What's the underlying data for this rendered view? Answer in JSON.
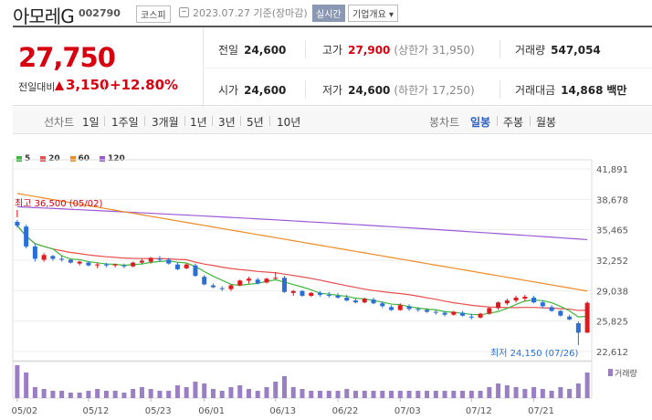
{
  "header": {
    "name": "아모레G",
    "code": "002790",
    "market": "코스피",
    "date": "2023.07.27 기준(장마감)",
    "realtime": "실시간",
    "company_info": "기업개요 ▾"
  },
  "summary": {
    "price": "27,750",
    "change_label": "전일대비",
    "change_value": "3,150",
    "change_rate": "+12.80%",
    "prev_label": "전일",
    "prev_value": "24,600",
    "high_label": "고가",
    "high_value": "27,900",
    "upper_limit": "(상한가 31,950)",
    "volume_label": "거래량",
    "volume_value": "547,054",
    "open_label": "시가",
    "open_value": "24,600",
    "low_label": "저가",
    "low_value": "24,600",
    "lower_limit": "(하한가 17,250)",
    "amount_label": "거래대금",
    "amount_value": "14,868",
    "amount_unit": "백만"
  },
  "period": {
    "line_chart": "선차트",
    "items": [
      "1일",
      "1주일",
      "3개월",
      "1년",
      "3년",
      "5년",
      "10년"
    ],
    "candle_chart": "봉차트",
    "candle_items": [
      "일봉",
      "주봉",
      "월봉"
    ],
    "active": "일봉"
  },
  "chart_data": {
    "type": "candlestick",
    "legend": [
      "5",
      "20",
      "60",
      "120"
    ],
    "legend_colors": [
      "#3cb83c",
      "#e84e4e",
      "#f08a24",
      "#9b59d6"
    ],
    "y_ticks": [
      "41,891",
      "38,678",
      "35,465",
      "32,252",
      "29,038",
      "25,825",
      "22,612"
    ],
    "ylim": [
      22612,
      41891
    ],
    "x_labels": [
      "05/02",
      "05/12",
      "05/23",
      "06/01",
      "06/13",
      "06/22",
      "07/03",
      "07/12",
      "07/21"
    ],
    "x_label_index": [
      0,
      8,
      15,
      21,
      29,
      36,
      43,
      51,
      58
    ],
    "high_annotation": "최고 36,500 (05/02)",
    "low_annotation": "최저 24,150 (07/26)",
    "volume_label": "거래량",
    "candles": [
      [
        36300,
        36500,
        35700,
        35900
      ],
      [
        35800,
        36000,
        33500,
        33700
      ],
      [
        33700,
        34000,
        32100,
        32400
      ],
      [
        32300,
        33000,
        32100,
        32800
      ],
      [
        32700,
        32800,
        32200,
        32400
      ],
      [
        32400,
        32700,
        32100,
        32300
      ],
      [
        32300,
        32400,
        31900,
        32000
      ],
      [
        31900,
        32200,
        31700,
        32100
      ],
      [
        32000,
        32100,
        31600,
        31700
      ],
      [
        31700,
        32000,
        31400,
        31800
      ],
      [
        31800,
        32000,
        31500,
        31700
      ],
      [
        31700,
        31900,
        31500,
        31800
      ],
      [
        31700,
        31900,
        31400,
        31600
      ],
      [
        31600,
        32100,
        31500,
        32000
      ],
      [
        32000,
        32400,
        31800,
        32200
      ],
      [
        32100,
        32600,
        31900,
        32500
      ],
      [
        32400,
        32700,
        32100,
        32300
      ],
      [
        32300,
        32500,
        31800,
        31900
      ],
      [
        31800,
        32000,
        31200,
        31300
      ],
      [
        31400,
        31900,
        31300,
        31800
      ],
      [
        31700,
        31900,
        30500,
        30600
      ],
      [
        30500,
        30700,
        29600,
        29700
      ],
      [
        29600,
        29800,
        29300,
        29400
      ],
      [
        29300,
        29500,
        29000,
        29200
      ],
      [
        29200,
        29700,
        29000,
        29600
      ],
      [
        29600,
        30200,
        29500,
        30100
      ],
      [
        30100,
        30500,
        29800,
        30300
      ],
      [
        30200,
        30400,
        29700,
        29800
      ],
      [
        29900,
        30400,
        29800,
        30300
      ],
      [
        30300,
        31000,
        30200,
        30400
      ],
      [
        30400,
        30600,
        28800,
        28900
      ],
      [
        28800,
        29100,
        28500,
        29000
      ],
      [
        29000,
        29100,
        28400,
        28500
      ],
      [
        28500,
        28900,
        28400,
        28800
      ],
      [
        28800,
        29000,
        28400,
        28600
      ],
      [
        28600,
        28900,
        28300,
        28500
      ],
      [
        28500,
        28800,
        28200,
        28300
      ],
      [
        28300,
        28600,
        27900,
        28000
      ],
      [
        28000,
        28200,
        27700,
        27800
      ],
      [
        27800,
        28300,
        27700,
        28200
      ],
      [
        28100,
        28300,
        27600,
        27700
      ],
      [
        27700,
        27900,
        27200,
        27400
      ],
      [
        27300,
        27500,
        26900,
        27000
      ],
      [
        27000,
        27700,
        26900,
        27500
      ],
      [
        27400,
        27600,
        26900,
        27100
      ],
      [
        27100,
        27300,
        26800,
        27000
      ],
      [
        27000,
        27200,
        26700,
        26800
      ],
      [
        26800,
        27000,
        26500,
        26700
      ],
      [
        26700,
        26900,
        26300,
        26500
      ],
      [
        26500,
        26900,
        26400,
        26800
      ],
      [
        26700,
        26900,
        26300,
        26400
      ],
      [
        26300,
        26600,
        26000,
        26200
      ],
      [
        26200,
        26700,
        26100,
        26600
      ],
      [
        26600,
        27300,
        26500,
        27200
      ],
      [
        27200,
        27900,
        27000,
        27800
      ],
      [
        27700,
        28200,
        27500,
        28000
      ],
      [
        28000,
        28500,
        27800,
        28300
      ],
      [
        28200,
        28600,
        27900,
        28400
      ],
      [
        28300,
        28500,
        27700,
        27800
      ],
      [
        27800,
        28000,
        27200,
        27400
      ],
      [
        27300,
        27500,
        26800,
        26900
      ],
      [
        26900,
        27000,
        26300,
        26400
      ],
      [
        26300,
        26500,
        25900,
        26000
      ],
      [
        25600,
        25800,
        24150,
        24600
      ],
      [
        24600,
        27900,
        24600,
        27750
      ]
    ],
    "volume": [
      18,
      14,
      6,
      5,
      4,
      4,
      3,
      3,
      4,
      5,
      4,
      4,
      3,
      5,
      6,
      5,
      4,
      4,
      7,
      6,
      9,
      8,
      5,
      4,
      6,
      7,
      5,
      4,
      6,
      9,
      12,
      6,
      5,
      4,
      4,
      4,
      4,
      5,
      4,
      4,
      4,
      4,
      4,
      4,
      4,
      4,
      4,
      4,
      4,
      4,
      4,
      4,
      4,
      6,
      8,
      7,
      6,
      5,
      6,
      5,
      4,
      6,
      5,
      8,
      14
    ]
  }
}
